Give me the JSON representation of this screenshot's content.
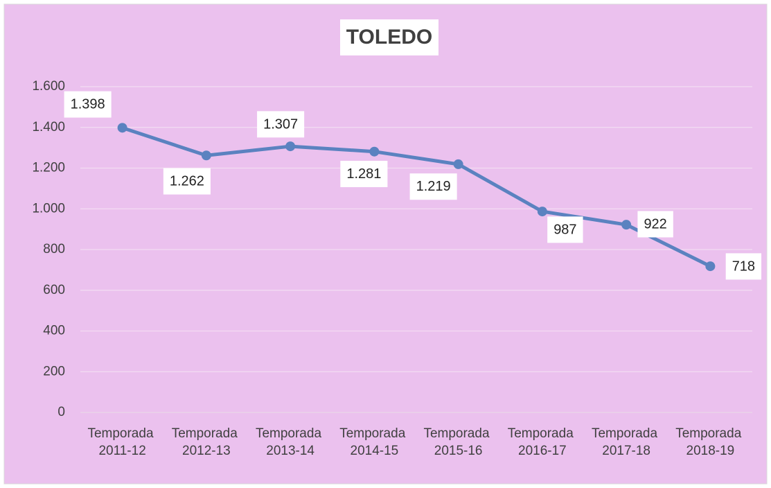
{
  "chart_data": {
    "type": "line",
    "title": "TOLEDO",
    "categories": [
      "Temporada 2011-12",
      "Temporada 2012-13",
      "Temporada 2013-14",
      "Temporada 2014-15",
      "Temporada 2015-16",
      "Temporada 2016-17",
      "Temporada 2017-18",
      "Temporada 2018-19"
    ],
    "series": [
      {
        "name": "Toledo",
        "color": "#5b82c0",
        "values": [
          1398,
          1262,
          1307,
          1281,
          1219,
          987,
          922,
          718
        ],
        "value_labels": [
          "1.398",
          "1.262",
          "1.307",
          "1.281",
          "1.219",
          "987",
          "922",
          "718"
        ]
      }
    ],
    "ylim": [
      0,
      1600
    ],
    "yticks": [
      0,
      200,
      400,
      600,
      800,
      {
        "value": 1000,
        "label": "1.000"
      },
      {
        "value": 1200,
        "label": "1.200"
      },
      {
        "value": 1400,
        "label": "1.400"
      },
      {
        "value": 1600,
        "label": "1.600"
      }
    ],
    "grid": true
  }
}
